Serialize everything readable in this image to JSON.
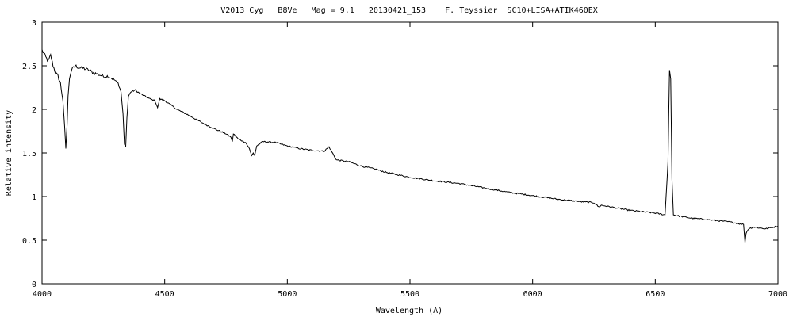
{
  "chart_data": {
    "type": "line",
    "title": "V2013 Cyg   B8Ve   Mag = 9.1   20130421_153    F. Teyssier  SC10+LISA+ATIK460EX",
    "xlabel": "Wavelength (A)",
    "ylabel": "Relative intensity",
    "xlim": [
      4000,
      7000
    ],
    "ylim": [
      0,
      3
    ],
    "xticks": [
      4000,
      4500,
      5000,
      5500,
      6000,
      6500,
      7000
    ],
    "yticks": [
      0,
      0.5,
      1,
      1.5,
      2,
      2.5,
      3
    ],
    "ytick_labels": [
      "0",
      "0.5",
      "1",
      "1.5",
      "2",
      "2.5",
      "3"
    ],
    "grid": false,
    "line_color": "#000000",
    "series": [
      {
        "x": [
          4000,
          4015,
          4025,
          4035,
          4045,
          4055,
          4065,
          4075,
          4085,
          4092,
          4097,
          4102,
          4106,
          4112,
          4120,
          4135,
          4150,
          4170,
          4190,
          4210,
          4230,
          4250,
          4270,
          4290,
          4310,
          4322,
          4330,
          4336,
          4341,
          4346,
          4352,
          4362,
          4380,
          4400,
          4420,
          4440,
          4460,
          4471,
          4480,
          4500,
          4550,
          4600,
          4650,
          4700,
          4750,
          4770,
          4776,
          4780,
          4800,
          4830,
          4845,
          4855,
          4861,
          4867,
          4875,
          4900,
          4950,
          5000,
          5050,
          5100,
          5150,
          5170,
          5200,
          5250,
          5300,
          5350,
          5400,
          5500,
          5600,
          5700,
          5800,
          5900,
          6000,
          6100,
          6200,
          6250,
          6270,
          6280,
          6300,
          6400,
          6500,
          6540,
          6552,
          6558,
          6563,
          6568,
          6574,
          6590,
          6650,
          6700,
          6800,
          6860,
          6866,
          6870,
          6880,
          6900,
          6950,
          7000
        ],
        "y": [
          2.68,
          2.6,
          2.55,
          2.62,
          2.5,
          2.42,
          2.38,
          2.3,
          2.1,
          1.8,
          1.55,
          1.82,
          2.15,
          2.35,
          2.45,
          2.5,
          2.48,
          2.47,
          2.45,
          2.42,
          2.4,
          2.38,
          2.38,
          2.35,
          2.3,
          2.2,
          1.95,
          1.6,
          1.57,
          1.9,
          2.15,
          2.2,
          2.22,
          2.18,
          2.15,
          2.12,
          2.1,
          2.02,
          2.12,
          2.1,
          2.0,
          1.93,
          1.85,
          1.78,
          1.72,
          1.68,
          1.63,
          1.72,
          1.66,
          1.62,
          1.55,
          1.47,
          1.5,
          1.47,
          1.58,
          1.63,
          1.62,
          1.58,
          1.55,
          1.53,
          1.52,
          1.57,
          1.42,
          1.4,
          1.35,
          1.32,
          1.28,
          1.22,
          1.18,
          1.15,
          1.1,
          1.05,
          1.01,
          0.97,
          0.94,
          0.93,
          0.88,
          0.9,
          0.89,
          0.84,
          0.81,
          0.79,
          1.4,
          2.45,
          2.35,
          1.2,
          0.79,
          0.78,
          0.75,
          0.74,
          0.71,
          0.68,
          0.47,
          0.58,
          0.63,
          0.65,
          0.63,
          0.66
        ]
      }
    ]
  }
}
